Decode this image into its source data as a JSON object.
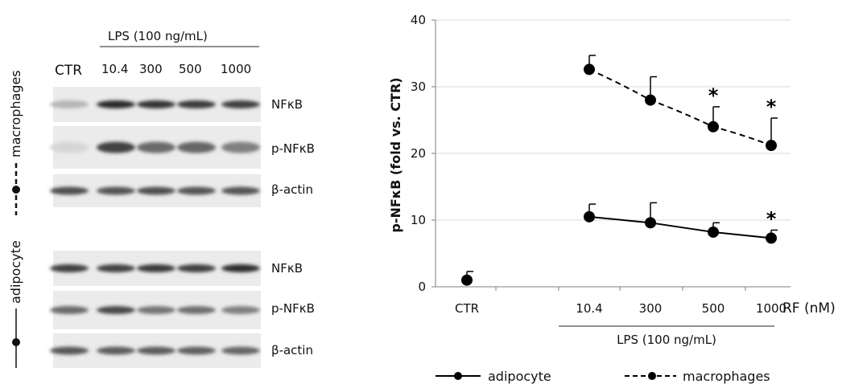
{
  "blot": {
    "lps_header": "LPS (100 ng/mL)",
    "lanes": [
      "CTR",
      "10.4",
      "300",
      "500",
      "1000"
    ],
    "groups": [
      {
        "name": "macrophages",
        "line_style": "dashed",
        "rows": [
          {
            "label": "NFκB",
            "intensities": [
              0.25,
              0.9,
              0.85,
              0.82,
              0.8
            ]
          },
          {
            "label": "p-NFκB",
            "intensities": [
              0.1,
              0.78,
              0.6,
              0.62,
              0.5
            ]
          },
          {
            "label": "β-actin",
            "intensities": [
              0.72,
              0.7,
              0.72,
              0.7,
              0.7
            ]
          }
        ]
      },
      {
        "name": "adipocyte",
        "line_style": "solid",
        "rows": [
          {
            "label": "NFκB",
            "intensities": [
              0.8,
              0.78,
              0.82,
              0.8,
              0.88
            ]
          },
          {
            "label": "p-NFκB",
            "intensities": [
              0.6,
              0.75,
              0.55,
              0.58,
              0.5
            ]
          },
          {
            "label": "β-actin",
            "intensities": [
              0.68,
              0.66,
              0.66,
              0.64,
              0.62
            ]
          }
        ]
      }
    ]
  },
  "chart_data": {
    "type": "line",
    "categories": [
      "CTR",
      "10.4",
      "300",
      "500",
      "1000"
    ],
    "xlabel": "RF (nM)",
    "x_group_label": "LPS (100 ng/mL)",
    "ylabel": "p-NFκB (fold vs. CTR)",
    "ylim": [
      0,
      40
    ],
    "yticks": [
      0,
      10,
      20,
      30,
      40
    ],
    "grid": true,
    "legend": "bottom",
    "series": [
      {
        "name": "adipocyte",
        "style": "solid",
        "values": [
          1.0,
          10.5,
          9.6,
          8.2,
          7.3
        ],
        "errors": [
          1.3,
          1.9,
          3.0,
          1.4,
          1.2
        ],
        "significant": [
          false,
          false,
          false,
          false,
          true
        ]
      },
      {
        "name": "macrophages",
        "style": "dashed",
        "values": [
          null,
          32.6,
          28.0,
          24.0,
          21.2
        ],
        "errors": [
          null,
          2.1,
          3.5,
          3.0,
          4.1
        ],
        "significant": [
          false,
          false,
          false,
          true,
          true
        ]
      }
    ],
    "significance_marker": "*",
    "colors": {
      "line": "#000000",
      "grid": "#d9d9d9",
      "axis": "#7f7f7f"
    }
  }
}
